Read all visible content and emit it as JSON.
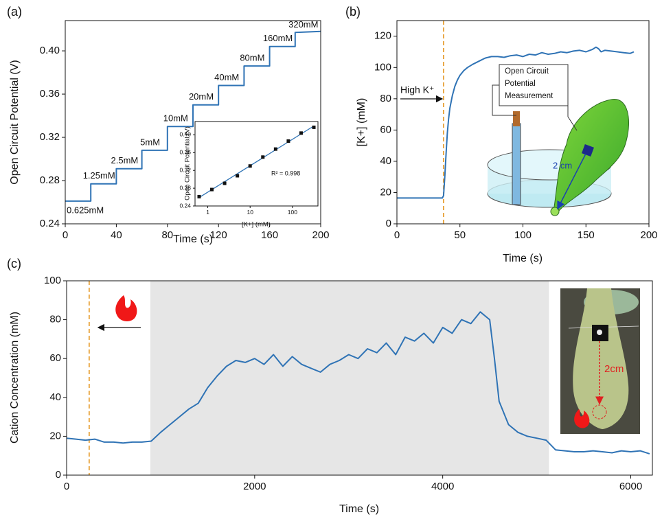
{
  "chart_data": [
    {
      "type": "line",
      "panel": "(a)",
      "xlabel": "Time (s)",
      "ylabel": "Open Circuit Potential (V)",
      "x": [
        0,
        20,
        20,
        40,
        40,
        60,
        60,
        80,
        80,
        100,
        100,
        120,
        120,
        140,
        140,
        160,
        160,
        180,
        180,
        200
      ],
      "values": [
        0.261,
        0.261,
        0.277,
        0.277,
        0.291,
        0.291,
        0.308,
        0.308,
        0.33,
        0.33,
        0.35,
        0.35,
        0.368,
        0.368,
        0.386,
        0.386,
        0.404,
        0.404,
        0.417,
        0.418
      ],
      "step_labels": [
        "0.625mM",
        "1.25mM",
        "2.5mM",
        "5mM",
        "10mM",
        "20mM",
        "40mM",
        "80mM",
        "160mM",
        "320mM"
      ],
      "color": "#2f73b5",
      "xlim": [
        0,
        200
      ],
      "ylim": [
        0.24,
        0.428
      ],
      "xticks": [
        0,
        40,
        80,
        120,
        160,
        200
      ],
      "yticks": [
        0.24,
        0.28,
        0.32,
        0.36,
        {
          "value": 0.4,
          "label": "0.40"
        }
      ]
    },
    {
      "type": "scatter",
      "xlabel": "[K+] (mM)",
      "ylabel": "Open Circuit Potential (V)",
      "annotation": "R² = 0.998",
      "x": [
        0.625,
        1.25,
        2.5,
        5,
        10,
        20,
        40,
        80,
        160,
        320
      ],
      "values": [
        0.261,
        0.277,
        0.291,
        0.308,
        0.33,
        0.35,
        0.368,
        0.386,
        0.404,
        0.417
      ],
      "color": "#111111",
      "fit": {
        "x": [
          0.625,
          320
        ],
        "values": [
          0.259,
          0.42
        ],
        "color": "#2f73b5"
      },
      "xlog": true,
      "xlim": [
        0.5,
        400
      ],
      "ylim": [
        0.24,
        0.43
      ],
      "xticks": [
        1,
        10,
        100
      ],
      "yticks": [
        0.24,
        0.28,
        0.32,
        0.36,
        {
          "value": 0.4,
          "label": "0.40"
        }
      ]
    },
    {
      "type": "line",
      "panel": "(b)",
      "xlabel": "Time (s)",
      "ylabel": "[K+] (mM)",
      "x": [
        0,
        36,
        37,
        38,
        39,
        40,
        41,
        42,
        44,
        46,
        48,
        50,
        53,
        56,
        60,
        65,
        70,
        75,
        80,
        85,
        90,
        95,
        100,
        105,
        110,
        115,
        120,
        125,
        130,
        135,
        140,
        145,
        150,
        155,
        158,
        160,
        162,
        165,
        170,
        175,
        180,
        185,
        188
      ],
      "values": [
        16.5,
        16.5,
        18,
        30,
        45,
        58,
        67,
        74,
        82,
        88,
        92,
        95,
        98,
        100,
        102,
        104,
        106,
        107,
        107,
        106.5,
        107.5,
        108,
        107,
        108.5,
        108,
        109.5,
        108.5,
        109,
        110,
        109.5,
        110.5,
        111,
        110,
        111.5,
        113,
        112,
        110,
        111,
        110.5,
        110,
        109.5,
        109,
        110
      ],
      "color": "#2f73b5",
      "vline": 37,
      "xlim": [
        0,
        200
      ],
      "ylim": [
        0,
        130
      ],
      "xticks": [
        0,
        50,
        100,
        150,
        200
      ],
      "yticks": [
        0,
        20,
        40,
        60,
        80,
        100,
        120
      ],
      "annotations": {
        "arrow_label": "High K⁺",
        "diagram_box": [
          "Open Circuit",
          "Potential",
          "Measurement"
        ],
        "diagram_distance": "2 cm"
      }
    },
    {
      "type": "line",
      "panel": "(c)",
      "xlabel": "Time (s)",
      "ylabel": "Cation Concentration (mM)",
      "x": [
        0,
        100,
        200,
        300,
        400,
        500,
        600,
        700,
        800,
        900,
        1000,
        1100,
        1200,
        1300,
        1400,
        1500,
        1600,
        1700,
        1800,
        1900,
        2000,
        2100,
        2200,
        2300,
        2400,
        2500,
        2600,
        2700,
        2800,
        2900,
        3000,
        3100,
        3200,
        3300,
        3400,
        3500,
        3600,
        3700,
        3800,
        3900,
        4000,
        4100,
        4200,
        4300,
        4400,
        4500,
        4550,
        4600,
        4700,
        4800,
        4900,
        5000,
        5100,
        5200,
        5300,
        5400,
        5500,
        5600,
        5700,
        5800,
        5900,
        6000,
        6100,
        6200
      ],
      "values": [
        19,
        18.5,
        18,
        18.5,
        17,
        17,
        16.5,
        17,
        17,
        17.5,
        22,
        26,
        30,
        34,
        37,
        45,
        51,
        56,
        59,
        58,
        60,
        57,
        62,
        56,
        61,
        57,
        55,
        53,
        57,
        59,
        62,
        60,
        65,
        63,
        68,
        62,
        71,
        69,
        73,
        68,
        76,
        73,
        80,
        78,
        84,
        80,
        60,
        38,
        26,
        22,
        20,
        19,
        18,
        13,
        12.5,
        12,
        12,
        12.5,
        12,
        11.5,
        12.5,
        12,
        12.5,
        11
      ],
      "color": "#2f73b5",
      "vline": 240,
      "shade": [
        890,
        5130
      ],
      "xlim": [
        0,
        6230
      ],
      "ylim": [
        0,
        100
      ],
      "xticks": [
        0,
        2000,
        4000,
        6000
      ],
      "yticks": [
        0,
        20,
        40,
        60,
        80,
        100
      ],
      "photo_distance": "2cm"
    }
  ]
}
